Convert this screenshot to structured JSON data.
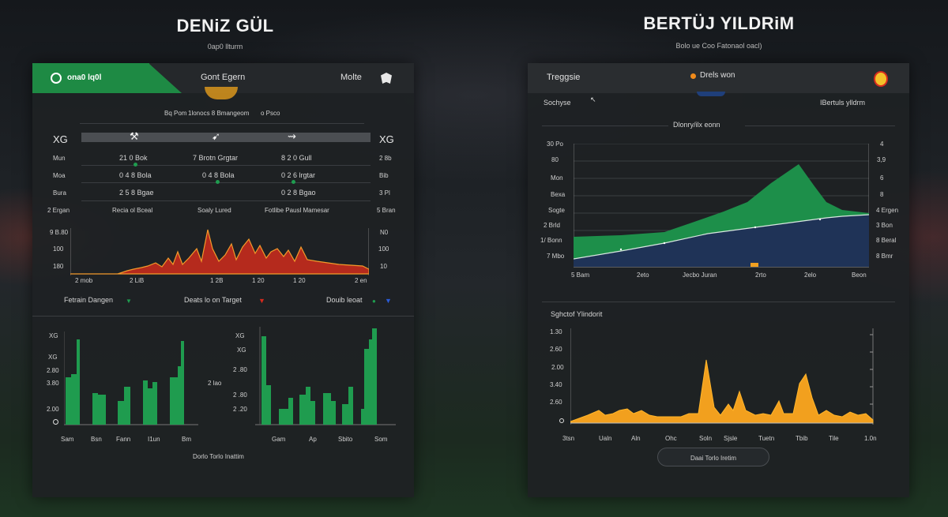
{
  "left": {
    "title": "DENiZ GÜL",
    "subtitle": "0ap0 llturm",
    "header": {
      "brand": "ona0 lq0l",
      "center": "Gont Egern",
      "right": "Molte"
    },
    "info_row": {
      "a": "Bq Pom",
      "b": "1lonocs 8 Bmangeom",
      "c": "o Psco"
    },
    "stats": {
      "left_label": "XG",
      "right_label": "XG",
      "rows": [
        {
          "left": "Mun",
          "c1": "21 0 Bok",
          "c2": "7 Brotn Grgtar",
          "c3": "8 2 0 Gull",
          "right": "2 8b"
        },
        {
          "left": "Moa",
          "c1": "0 4 8 Bola",
          "c2": "0 4 8 Bola",
          "c3": "0 2 6 lrgtar",
          "right": "Bib"
        },
        {
          "left": "Bura",
          "c1": "2 5 8 Bgae",
          "c2": "",
          "c3": "0 2 8 Bgao",
          "right": "3 Pl"
        }
      ],
      "footer": {
        "left": "2 Ergan",
        "c1": "Recia ol Bceal",
        "c2": "Soaly Lured",
        "c3": "Fotlibe Pausl Mamesar",
        "right": "5 Bran"
      }
    },
    "line_chart": {
      "ylabels_left": [
        "9 B.80",
        "100",
        "180"
      ],
      "ylabels_right": [
        "N0",
        "100",
        "10"
      ],
      "xlabels": [
        "2 mob",
        "2 LiB",
        "1 2B",
        "1 20",
        "1 20",
        "2 en"
      ]
    },
    "legend": {
      "a": "Fetrain Dangen",
      "b": "Deats lo on Target",
      "c": "Douib leoat"
    },
    "bar_left": {
      "ylabels": [
        "XG",
        "XG",
        "2.80",
        "3.80",
        "2.00",
        "0"
      ],
      "xlabels": [
        "Sam",
        "Bsn",
        "Fann",
        "I1un",
        "Bm"
      ]
    },
    "bar_right": {
      "ylabels": [
        "XG",
        "XG",
        "2 lao",
        "2 .80",
        "2 .80",
        "2 .20"
      ],
      "xlabels": [
        "Gam",
        "Ap",
        "Sbito",
        "Som"
      ]
    },
    "footer": "Dorlo Torlo Inattim"
  },
  "right": {
    "title": "BERTÜJ YILDRiM",
    "subtitle": "Bolo ue Coo Fatonaol oacl)",
    "header": {
      "left": "Treggsie",
      "center": "Drels won"
    },
    "row2": {
      "left": "Sochyse",
      "right": "IBertuls ylldrm"
    },
    "area_chart": {
      "title": "Dlonry/ilx eonn",
      "ylabels_left": [
        "30 Po",
        "80",
        "Mon",
        "Bexa",
        "Sogte",
        "2 Brld",
        "1/ Bonn",
        "7 Mbo"
      ],
      "ylabels_right": [
        "4",
        "3,9",
        "6",
        "8",
        "4 Ergen",
        "3 Bon",
        "8 Beral",
        "8 Bmr"
      ],
      "xlabels": [
        "5 Bam",
        "2eto",
        "Jecbo Juran",
        "2rto",
        "2elo",
        "Beon"
      ]
    },
    "spike_chart": {
      "title": "Sghctof Ylindorit",
      "ylabels": [
        "1.30",
        "2.60",
        "2.00",
        "3.40",
        "2.60",
        "0"
      ],
      "xlabels": [
        "3tsn",
        "Ualn",
        "Aln",
        "Ohc",
        "Soln",
        "Sjsle",
        "Tuetn",
        "Tbib",
        "Tile",
        "1.0n"
      ]
    },
    "footer_button": "Daai Torlo Iretim"
  },
  "colors": {
    "green": "#1f9c4f",
    "red": "#b82b1e",
    "orange": "#f0a020",
    "navy": "#1f3357",
    "panel": "#1f2225"
  }
}
